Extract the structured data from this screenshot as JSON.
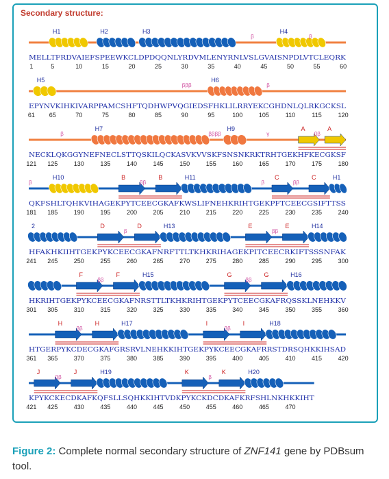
{
  "heading": "Secondary structure:",
  "caption": {
    "figure_label": "Figure 2:",
    "text_before": " Complete normal secondary structure of ",
    "gene": "ZNF141",
    "text_after": " gene by PDBsum tool."
  },
  "colors": {
    "frame": "#1aa0b8",
    "helix_orange": "#f07840",
    "helix_blue": "#1560b8",
    "strand_yellow": "#f0c800",
    "strand_blue": "#1560b8",
    "coil_orange": "#f08040",
    "coil_blue": "#1560b8",
    "sequence_text": "#1f2fa8",
    "label_red": "#cc2222"
  },
  "rows": [
    {
      "sequence": "MELLTFRDVAIEFSPEEWKCLDPDQQNLYRDVMLENYRNLVSLGVAISNPDLVTCLEQRK",
      "numbers": [
        "1",
        "5",
        "10",
        "15",
        "20",
        "25",
        "30",
        "35",
        "40",
        "45",
        "50",
        "55",
        "60"
      ],
      "coil": "orange",
      "elements": [
        {
          "type": "helix",
          "label": "H1",
          "start": 5,
          "end": 11,
          "color": "yellow"
        },
        {
          "type": "helix",
          "label": "H2",
          "start": 14,
          "end": 20,
          "color": "blue"
        },
        {
          "type": "helix",
          "label": "H3",
          "start": 22,
          "end": 39,
          "color": "blue"
        },
        {
          "type": "helix",
          "label": "H4",
          "start": 48,
          "end": 56,
          "color": "yellow"
        }
      ],
      "markers": [
        {
          "text": "β",
          "pos": 43
        },
        {
          "text": "β",
          "pos": 54
        }
      ]
    },
    {
      "sequence": "EPYNVKIHKIVARPPAMCSHFTQDHWPVQGIEDSFHKLILRRYEKCGHDNLQLRKGCKSL",
      "numbers": [
        "61",
        "65",
        "70",
        "75",
        "80",
        "85",
        "90",
        "95",
        "100",
        "105",
        "110",
        "115",
        "120"
      ],
      "coil": "orange",
      "elements": [
        {
          "type": "helix",
          "label": "H5",
          "start": 62,
          "end": 65,
          "color": "yellow"
        },
        {
          "type": "helix",
          "label": "H6",
          "start": 95,
          "end": 104,
          "color": "orange"
        }
      ],
      "markers": [
        {
          "text": "βββ",
          "pos": 90
        },
        {
          "text": "β",
          "pos": 106
        }
      ]
    },
    {
      "sequence": "NECKLQKGGYNEFNECLSTTQSKILQCKASVKVVSKFSNSNKRKTRHTGEKHFKECGKSF",
      "numbers": [
        "121",
        "125",
        "130",
        "135",
        "140",
        "145",
        "150",
        "155",
        "160",
        "165",
        "170",
        "175",
        "180"
      ],
      "coil": "orange",
      "elements": [
        {
          "type": "helix",
          "label": "H7",
          "start": 133,
          "end": 154,
          "color": "orange"
        },
        {
          "type": "helix",
          "label": "H9",
          "start": 158,
          "end": 161,
          "color": "orange"
        },
        {
          "type": "strand",
          "label": "A",
          "start": 172,
          "end": 175,
          "color": "yellow"
        },
        {
          "type": "strand",
          "label": "A",
          "start": 177,
          "end": 180,
          "color": "yellow"
        }
      ],
      "markers": [
        {
          "text": "β",
          "pos": 127
        },
        {
          "text": "ββββ",
          "pos": 155
        },
        {
          "text": "γ",
          "pos": 166
        },
        {
          "text": "ββ",
          "pos": 175
        }
      ]
    },
    {
      "sequence": "QKFSHLTQHKVIHAGEKPYTCEECGKAFKWSLIFNEHKRIHTGEKPFTCEECGSIFTTSS",
      "numbers": [
        "181",
        "185",
        "190",
        "195",
        "200",
        "205",
        "210",
        "215",
        "220",
        "225",
        "230",
        "235",
        "240"
      ],
      "coil": "blue",
      "elements": [
        {
          "type": "helix",
          "label": "H10",
          "start": 185,
          "end": 193,
          "color": "yellow"
        },
        {
          "type": "strand",
          "label": "B",
          "start": 198,
          "end": 202,
          "color": "blue"
        },
        {
          "type": "strand",
          "label": "B",
          "start": 205,
          "end": 209,
          "color": "blue"
        },
        {
          "type": "helix",
          "label": "H11",
          "start": 210,
          "end": 222,
          "color": "blue"
        },
        {
          "type": "strand",
          "label": "C",
          "start": 227,
          "end": 230,
          "color": "blue"
        },
        {
          "type": "strand",
          "label": "C",
          "start": 234,
          "end": 237,
          "color": "blue"
        },
        {
          "type": "helix",
          "label": "H1",
          "start": 238,
          "end": 240,
          "color": "blue"
        }
      ],
      "markers": [
        {
          "text": "β",
          "pos": 181
        },
        {
          "text": "ββ",
          "pos": 202
        },
        {
          "text": "β",
          "pos": 225
        },
        {
          "text": "ββ",
          "pos": 231
        }
      ]
    },
    {
      "sequence": "HFAKHKIIHTGEKPYKCEECGKAFNRFTTLTKHKRIHAGEKPITCEECRKIFTSSSNFAK",
      "numbers": [
        "241",
        "245",
        "250",
        "255",
        "260",
        "265",
        "270",
        "275",
        "280",
        "285",
        "290",
        "295",
        "300"
      ],
      "coil": "blue",
      "elements": [
        {
          "type": "helix",
          "label": "2",
          "start": 241,
          "end": 249,
          "color": "blue"
        },
        {
          "type": "strand",
          "label": "D",
          "start": 254,
          "end": 258,
          "color": "blue"
        },
        {
          "type": "strand",
          "label": "D",
          "start": 261,
          "end": 265,
          "color": "blue"
        },
        {
          "type": "helix",
          "label": "H13",
          "start": 266,
          "end": 278,
          "color": "blue"
        },
        {
          "type": "strand",
          "label": "E",
          "start": 282,
          "end": 286,
          "color": "blue"
        },
        {
          "type": "strand",
          "label": "E",
          "start": 289,
          "end": 293,
          "color": "blue"
        },
        {
          "type": "helix",
          "label": "H14",
          "start": 294,
          "end": 300,
          "color": "blue"
        }
      ],
      "markers": [
        {
          "text": "β",
          "pos": 259
        },
        {
          "text": "ββ",
          "pos": 287
        }
      ]
    },
    {
      "sequence": "HKRIHTGEKPYKCEECGKAFNRSTTLTKHKRIHTGEKPYTCEECGKAFRQSSKLNEHKKV",
      "numbers": [
        "301",
        "305",
        "310",
        "315",
        "320",
        "325",
        "330",
        "335",
        "340",
        "345",
        "350",
        "355",
        "360"
      ],
      "coil": "blue",
      "elements": [
        {
          "type": "helix",
          "label": "",
          "start": 301,
          "end": 306,
          "color": "blue"
        },
        {
          "type": "strand",
          "label": "F",
          "start": 310,
          "end": 314,
          "color": "blue"
        },
        {
          "type": "strand",
          "label": "F",
          "start": 317,
          "end": 321,
          "color": "blue"
        },
        {
          "type": "helix",
          "label": "H15",
          "start": 322,
          "end": 334,
          "color": "blue"
        },
        {
          "type": "strand",
          "label": "G",
          "start": 338,
          "end": 342,
          "color": "blue"
        },
        {
          "type": "strand",
          "label": "G",
          "start": 345,
          "end": 349,
          "color": "blue"
        },
        {
          "type": "helix",
          "label": "H16",
          "start": 350,
          "end": 360,
          "color": "blue"
        }
      ],
      "markers": [
        {
          "text": "ββ",
          "pos": 314
        },
        {
          "text": "ββ",
          "pos": 342
        }
      ]
    },
    {
      "sequence": "HTGERPYKCDECGKAFGRSRVLNEHKKIHTGEKPYKCEECGKAFRRSTDRSQHKKIHSAD",
      "numbers": [
        "361",
        "365",
        "370",
        "375",
        "380",
        "385",
        "390",
        "395",
        "400",
        "405",
        "410",
        "415",
        "420"
      ],
      "coil": "blue",
      "elements": [
        {
          "type": "strand",
          "label": "H",
          "start": 366,
          "end": 370,
          "color": "blue"
        },
        {
          "type": "strand",
          "label": "H",
          "start": 373,
          "end": 377,
          "color": "blue"
        },
        {
          "type": "helix",
          "label": "H17",
          "start": 378,
          "end": 390,
          "color": "blue"
        },
        {
          "type": "strand",
          "label": "I",
          "start": 394,
          "end": 398,
          "color": "blue"
        },
        {
          "type": "strand",
          "label": "I",
          "start": 401,
          "end": 405,
          "color": "blue"
        },
        {
          "type": "helix",
          "label": "H18",
          "start": 406,
          "end": 418,
          "color": "blue"
        }
      ],
      "markers": [
        {
          "text": "ββ",
          "pos": 370
        },
        {
          "text": "ββ",
          "pos": 398
        }
      ]
    },
    {
      "sequence": "KPYKCKECDKAFKQFSLLSQHKKIHTVDKPYKCKDCDKAFKRFSHLNKHKKIHT",
      "numbers": [
        "421",
        "425",
        "430",
        "435",
        "440",
        "445",
        "450",
        "455",
        "460",
        "465",
        "470"
      ],
      "coil": "blue",
      "elements": [
        {
          "type": "strand",
          "label": "J",
          "start": 422,
          "end": 426,
          "color": "blue"
        },
        {
          "type": "strand",
          "label": "J",
          "start": 429,
          "end": 433,
          "color": "blue"
        },
        {
          "type": "helix",
          "label": "H19",
          "start": 434,
          "end": 446,
          "color": "blue"
        },
        {
          "type": "strand",
          "label": "K",
          "start": 450,
          "end": 454,
          "color": "blue"
        },
        {
          "type": "strand",
          "label": "K",
          "start": 457,
          "end": 461,
          "color": "blue"
        },
        {
          "type": "helix",
          "label": "H20",
          "start": 462,
          "end": 468,
          "color": "blue"
        }
      ],
      "markers": [
        {
          "text": "ββ",
          "pos": 426
        },
        {
          "text": "β",
          "pos": 455
        }
      ]
    }
  ]
}
